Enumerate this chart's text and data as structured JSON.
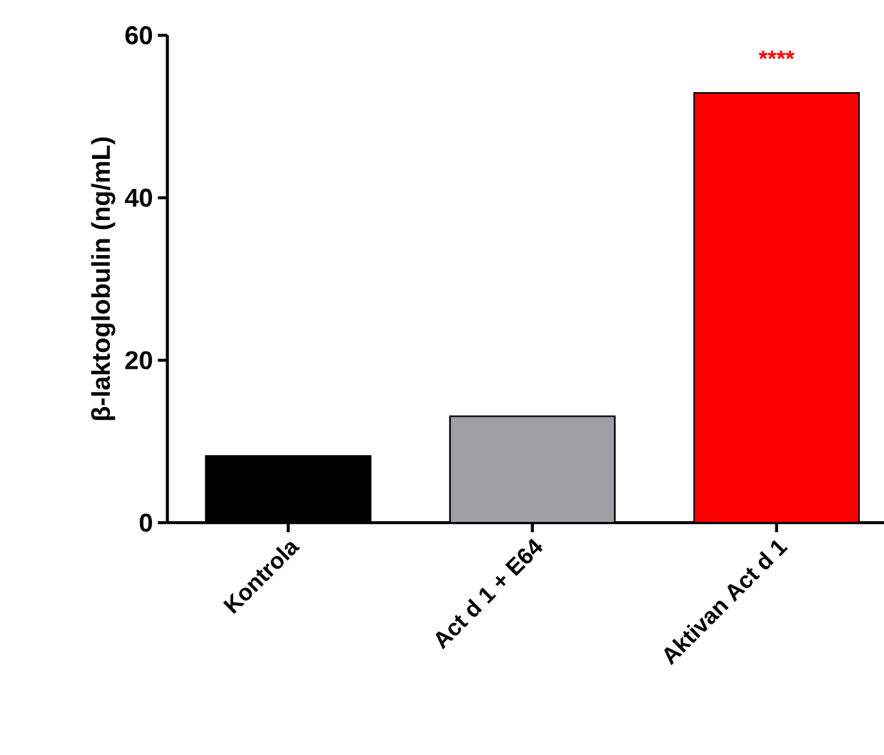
{
  "chart_data": {
    "type": "bar",
    "ylabel": "β-laktoglobulin (ng/mL)",
    "categories": [
      "Kontrola",
      "Act d 1 + E64",
      "Aktivan Act d 1"
    ],
    "values": [
      8.2,
      13.1,
      52.9
    ],
    "colors": [
      "#000000",
      "#a09fa4",
      "#ff0000"
    ],
    "ylim": [
      0,
      60
    ],
    "yticks": [
      0,
      20,
      40,
      60
    ],
    "annotations": [
      {
        "text": "****",
        "x": "Aktivan Act d 1",
        "y": 52.9
      }
    ],
    "grid": false
  }
}
